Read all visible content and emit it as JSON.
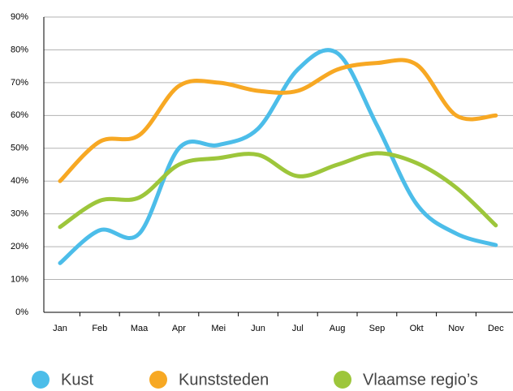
{
  "chart_data": {
    "type": "line",
    "categories": [
      "Jan",
      "Feb",
      "Maa",
      "Apr",
      "Mei",
      "Jun",
      "Jul",
      "Aug",
      "Sep",
      "Okt",
      "Nov",
      "Dec"
    ],
    "series": [
      {
        "name": "Kust",
        "color": "#4cbde9",
        "values": [
          15,
          25,
          24,
          50,
          51,
          56,
          74,
          79,
          57,
          33,
          24,
          20.5
        ]
      },
      {
        "name": "Kunststeden",
        "color": "#f7a823",
        "values": [
          40,
          52,
          54,
          69,
          70,
          67.5,
          67.5,
          74,
          76,
          75.5,
          60,
          60
        ]
      },
      {
        "name": "Vlaamse regio’s",
        "color": "#9dc63b",
        "values": [
          26,
          34,
          35,
          45,
          47,
          48,
          41.5,
          45,
          48.5,
          45.5,
          38,
          26.5
        ]
      }
    ],
    "ylim": [
      0,
      90
    ],
    "yticks": [
      {
        "value": 0,
        "label": "0%"
      },
      {
        "value": 10,
        "label": "10%"
      },
      {
        "value": 20,
        "label": "20%"
      },
      {
        "value": 30,
        "label": "30%"
      },
      {
        "value": 40,
        "label": "40%"
      },
      {
        "value": 50,
        "label": "50%"
      },
      {
        "value": 60,
        "label": "60%"
      },
      {
        "value": 70,
        "label": "70%"
      },
      {
        "value": 80,
        "label": "80%"
      },
      {
        "value": 90,
        "label": "90%"
      }
    ],
    "grid": true,
    "legend": "bottom"
  }
}
